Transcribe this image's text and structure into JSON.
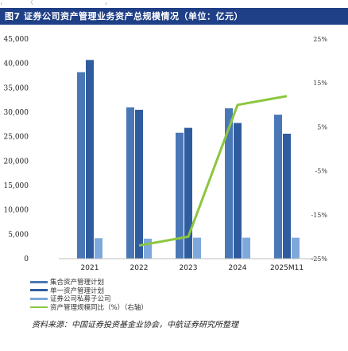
{
  "header": {
    "top_strip": "，　 　 　 　（　 　 　　 　 　 　 　 　 　 ，　　 　",
    "title": "图7 证券公司资产管理业务资产总规模情况（单位：亿元）"
  },
  "chart_data": {
    "type": "bar",
    "categories": [
      "2021",
      "2022",
      "2023",
      "2024",
      "2025M11"
    ],
    "series": [
      {
        "name": "",
        "kind": "bar",
        "values": [
          38200,
          31000,
          25800,
          30800,
          29500
        ],
        "color": "#4a78b7"
      },
      {
        "name": "",
        "kind": "bar",
        "values": [
          40700,
          30500,
          26800,
          27800,
          25600
        ],
        "color": "#2f5c9e"
      },
      {
        "name": "",
        "kind": "bar",
        "values": [
          4200,
          4100,
          4300,
          4300,
          4300
        ],
        "color": "#7ea8db"
      },
      {
        "name": "",
        "kind": "line",
        "axis": "right",
        "values": [
          null,
          -22,
          -20,
          10,
          12
        ],
        "color": "#8cc63f"
      }
    ],
    "ylim": [
      0,
      45000
    ],
    "yticks": [
      "45,000",
      "40,000",
      "35,000",
      "30,000",
      "25,000",
      "20,000",
      "15,000",
      "10,000",
      "5,000",
      "0"
    ],
    "y2lim": [
      -25,
      25
    ],
    "y2ticks": [
      "25%",
      "15%",
      "5%",
      "-5%",
      "-15%",
      "-25%"
    ],
    "grid": false,
    "legend_position": "bottom-left"
  },
  "legend": {
    "items": [
      {
        "label": "集合资产管理计划",
        "color": "#4a78b7",
        "kind": "bar"
      },
      {
        "label": "单一资产管理计划",
        "color": "#2f5c9e",
        "kind": "bar"
      },
      {
        "label": "证券公司私募子公司",
        "color": "#7ea8db",
        "kind": "bar"
      },
      {
        "label": "资产管理规模同比（%）（右轴）",
        "color": "#8cc63f",
        "kind": "line"
      }
    ]
  },
  "source": "资料来源：中国证券投资基金业协会，中航证券研究所整理"
}
